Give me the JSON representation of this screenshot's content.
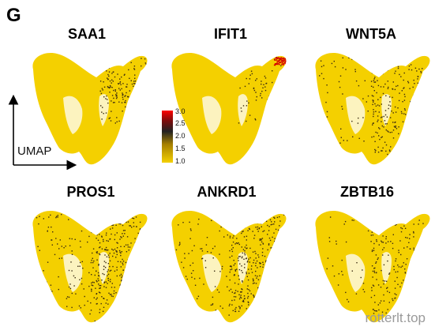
{
  "figure": {
    "panel_label": "G",
    "axis_label": "UMAP",
    "colors": {
      "base": "#F4D000",
      "mid": "#3a2a10",
      "high": "#d50000"
    },
    "colorbar": {
      "ticks": [
        "3.0",
        "2.5",
        "2.0",
        "1.5",
        "1.0"
      ],
      "range": [
        1.0,
        3.0
      ]
    },
    "panels": [
      {
        "gene": "SAA1",
        "expression_density": 0.18,
        "hotspot": "top-right"
      },
      {
        "gene": "IFIT1",
        "expression_density": 0.08,
        "hotspot": "top-right-red"
      },
      {
        "gene": "WNT5A",
        "expression_density": 0.35,
        "hotspot": "right-lobe"
      },
      {
        "gene": "PROS1",
        "expression_density": 0.55,
        "hotspot": "broad"
      },
      {
        "gene": "ANKRD1",
        "expression_density": 0.5,
        "hotspot": "broad"
      },
      {
        "gene": "ZBTB16",
        "expression_density": 0.25,
        "hotspot": "right-lobe"
      }
    ]
  },
  "watermark": "rotterlt.top"
}
